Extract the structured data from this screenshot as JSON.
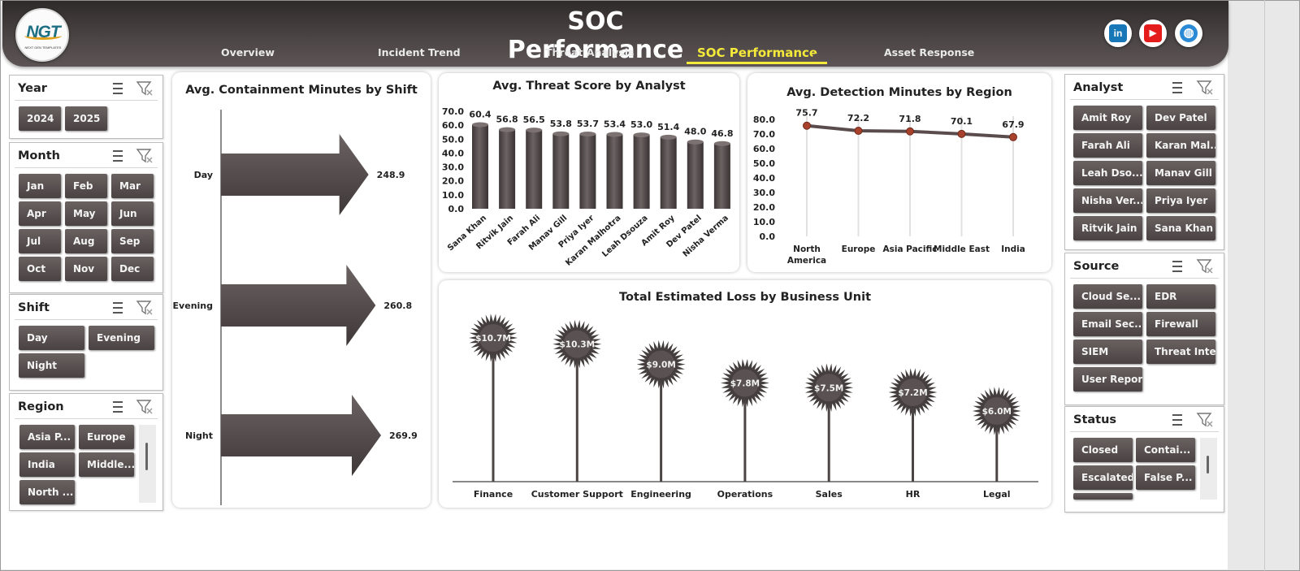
{
  "header": {
    "title": "SOC Performance",
    "logo_text": "NGT",
    "logo_subtext": "NEXT GEN TEMPLATES",
    "tabs": [
      {
        "label": "Overview"
      },
      {
        "label": "Incident Trend"
      },
      {
        "label": "Threat Analysis"
      },
      {
        "label": "SOC Performance",
        "active": true
      },
      {
        "label": "Asset Response"
      }
    ],
    "social": [
      {
        "icon": "linkedin-icon",
        "glyph": "in",
        "color": "#1877b7"
      },
      {
        "icon": "youtube-icon",
        "glyph": "▶",
        "color": "#e51c1c"
      },
      {
        "icon": "globe-icon",
        "glyph": "◍",
        "color": "#2b8ad6"
      }
    ]
  },
  "slicers": {
    "year": {
      "title": "Year",
      "items": [
        "2024",
        "2025"
      ]
    },
    "month": {
      "title": "Month",
      "items": [
        "Jan",
        "Feb",
        "Mar",
        "Apr",
        "May",
        "Jun",
        "Jul",
        "Aug",
        "Sep",
        "Oct",
        "Nov",
        "Dec"
      ]
    },
    "shift": {
      "title": "Shift",
      "items": [
        "Day",
        "Evening",
        "Night"
      ]
    },
    "region": {
      "title": "Region",
      "items": [
        "Asia P...",
        "Europe",
        "India",
        "Middle...",
        "North ..."
      ]
    },
    "analyst": {
      "title": "Analyst",
      "items": [
        "Amit Roy",
        "Dev Patel",
        "Farah Ali",
        "Karan Mal...",
        "Leah Dso...",
        "Manav Gill",
        "Nisha Ver...",
        "Priya Iyer",
        "Ritvik Jain",
        "Sana Khan"
      ]
    },
    "source": {
      "title": "Source",
      "items": [
        "Cloud Se...",
        "EDR",
        "Email Sec...",
        "Firewall",
        "SIEM",
        "Threat Intel",
        "User Report"
      ]
    },
    "status": {
      "title": "Status",
      "items": [
        "Closed",
        "Contai...",
        "Escalated",
        "False P..."
      ]
    }
  },
  "charts": {
    "containment": {
      "title": "Avg. Containment Minutes by Shift"
    },
    "threat": {
      "title": "Avg. Threat Score by Analyst"
    },
    "detection": {
      "title": "Avg. Detection Minutes by Region"
    },
    "loss": {
      "title": "Total Estimated Loss by Business Unit"
    }
  },
  "chart_data": [
    {
      "type": "bar",
      "title": "Avg. Containment Minutes by Shift",
      "orientation": "horizontal",
      "categories": [
        "Day",
        "Evening",
        "Night"
      ],
      "values": [
        248.9,
        260.8,
        269.9
      ],
      "color": "#4f4747"
    },
    {
      "type": "bar",
      "title": "Avg. Threat Score by Analyst",
      "categories": [
        "Sana Khan",
        "Ritvik Jain",
        "Farah Ali",
        "Manav Gill",
        "Priya Iyer",
        "Karan Malhotra",
        "Leah Dsouza",
        "Amit Roy",
        "Dev Patel",
        "Nisha Verma"
      ],
      "values": [
        60.4,
        56.8,
        56.5,
        53.8,
        53.7,
        53.4,
        53.0,
        51.4,
        48.0,
        46.8
      ],
      "ylim": [
        0,
        70
      ],
      "yticks": [
        "0.0",
        "10.0",
        "20.0",
        "30.0",
        "40.0",
        "50.0",
        "60.0",
        "70.0"
      ],
      "color": "#4f4747"
    },
    {
      "type": "line",
      "title": "Avg. Detection Minutes by Region",
      "categories": [
        "North America",
        "Europe",
        "Asia Pacific",
        "Middle East",
        "India"
      ],
      "category_lines": [
        [
          "North",
          "America"
        ],
        [
          "Europe"
        ],
        [
          "Asia Pacific"
        ],
        [
          "Middle East"
        ],
        [
          "India"
        ]
      ],
      "values": [
        75.7,
        72.2,
        71.8,
        70.1,
        67.9
      ],
      "ylim": [
        0,
        80
      ],
      "yticks": [
        "0.0",
        "10.0",
        "20.0",
        "30.0",
        "40.0",
        "50.0",
        "60.0",
        "70.0",
        "80.0"
      ],
      "color": "#5a4c4c",
      "marker_color": "#a8412b"
    },
    {
      "type": "bar",
      "title": "Total Estimated Loss by Business Unit",
      "style": "lollipop-starburst",
      "categories": [
        "Finance",
        "Customer Support",
        "Engineering",
        "Operations",
        "Sales",
        "HR",
        "Legal"
      ],
      "values": [
        10.7,
        10.3,
        9.0,
        7.8,
        7.5,
        7.2,
        6.0
      ],
      "labels": [
        "$10.7M",
        "$10.3M",
        "$9.0M",
        "$7.8M",
        "$7.5M",
        "$7.2M",
        "$6.0M"
      ],
      "unit": "$M",
      "color": "#4f4747"
    }
  ]
}
